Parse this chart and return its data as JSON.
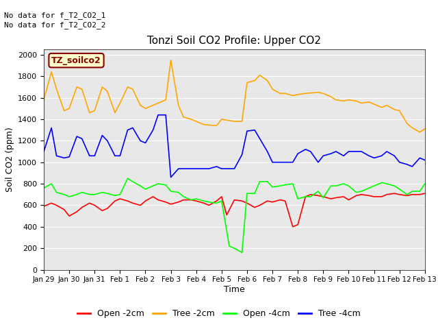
{
  "title": "Tonzi Soil CO2 Profile: Upper CO2",
  "ylabel": "Soil CO2 (ppm)",
  "xlabel": "Time",
  "no_data_text": [
    "No data for f_T2_CO2_1",
    "No data for f_T2_CO2_2"
  ],
  "legend_label": "TZ_soilco2",
  "ylim": [
    0,
    2050
  ],
  "background_color": "#e8e8e8",
  "series": {
    "open_2cm": {
      "label": "Open -2cm",
      "color": "red",
      "x": [
        0,
        0.3,
        0.5,
        0.8,
        1.0,
        1.3,
        1.5,
        1.8,
        2.0,
        2.3,
        2.5,
        2.8,
        3.0,
        3.3,
        3.5,
        3.8,
        4.0,
        4.3,
        4.5,
        4.8,
        5.0,
        5.3,
        5.5,
        5.8,
        6.0,
        6.3,
        6.5,
        6.8,
        7.0,
        7.2,
        7.5,
        7.8,
        8.0,
        8.3,
        8.5,
        8.8,
        9.0,
        9.3,
        9.5,
        9.8,
        10.0,
        10.3,
        10.5,
        10.8,
        11.0,
        11.3,
        11.5,
        11.8,
        12.0,
        12.3,
        12.5,
        12.8,
        13.0,
        13.3,
        13.5,
        13.8,
        14.0,
        14.3,
        14.5,
        14.8,
        15.0
      ],
      "y": [
        590,
        620,
        600,
        560,
        500,
        540,
        580,
        620,
        600,
        550,
        570,
        640,
        660,
        640,
        620,
        600,
        640,
        680,
        650,
        630,
        610,
        630,
        650,
        650,
        640,
        620,
        600,
        640,
        680,
        510,
        650,
        640,
        620,
        580,
        600,
        640,
        630,
        650,
        640,
        400,
        420,
        680,
        700,
        690,
        680,
        660,
        670,
        680,
        650,
        690,
        700,
        690,
        680,
        680,
        700,
        710,
        700,
        690,
        700,
        700,
        710
      ]
    },
    "tree_2cm": {
      "label": "Tree -2cm",
      "color": "orange",
      "x": [
        0,
        0.3,
        0.5,
        0.8,
        1.0,
        1.3,
        1.5,
        1.8,
        2.0,
        2.3,
        2.5,
        2.8,
        3.0,
        3.3,
        3.5,
        3.8,
        4.0,
        4.3,
        4.5,
        4.8,
        5.0,
        5.3,
        5.5,
        5.8,
        6.0,
        6.3,
        6.8,
        7.0,
        7.5,
        7.8,
        8.0,
        8.3,
        8.5,
        8.8,
        9.0,
        9.3,
        9.5,
        9.8,
        10.0,
        10.3,
        10.8,
        11.0,
        11.3,
        11.5,
        11.8,
        12.0,
        12.3,
        12.5,
        12.8,
        13.0,
        13.3,
        13.5,
        13.8,
        14.0,
        14.3,
        14.5,
        14.8,
        15.0
      ],
      "y": [
        1580,
        1840,
        1680,
        1480,
        1500,
        1700,
        1680,
        1460,
        1480,
        1700,
        1660,
        1460,
        1550,
        1700,
        1680,
        1530,
        1500,
        1530,
        1550,
        1580,
        1950,
        1530,
        1420,
        1400,
        1380,
        1350,
        1340,
        1400,
        1380,
        1380,
        1740,
        1760,
        1810,
        1760,
        1680,
        1640,
        1640,
        1620,
        1630,
        1640,
        1650,
        1640,
        1610,
        1580,
        1570,
        1580,
        1570,
        1550,
        1560,
        1540,
        1510,
        1530,
        1490,
        1480,
        1360,
        1320,
        1280,
        1310
      ]
    },
    "open_4cm": {
      "label": "Open -4cm",
      "color": "lime",
      "x": [
        0,
        0.3,
        0.5,
        0.8,
        1.0,
        1.3,
        1.5,
        1.8,
        2.0,
        2.3,
        2.5,
        2.8,
        3.0,
        3.3,
        3.5,
        3.8,
        4.0,
        4.3,
        4.5,
        4.8,
        5.0,
        5.3,
        5.5,
        5.8,
        6.0,
        6.3,
        6.5,
        6.8,
        7.0,
        7.3,
        7.5,
        7.8,
        8.0,
        8.3,
        8.5,
        8.8,
        9.0,
        9.3,
        9.5,
        9.8,
        10.0,
        10.3,
        10.5,
        10.8,
        11.0,
        11.3,
        11.5,
        11.8,
        12.0,
        12.3,
        12.5,
        12.8,
        13.0,
        13.3,
        13.5,
        13.8,
        14.0,
        14.3,
        14.5,
        14.8,
        15.0
      ],
      "y": [
        760,
        800,
        720,
        700,
        680,
        700,
        720,
        700,
        700,
        720,
        710,
        690,
        700,
        850,
        820,
        780,
        750,
        780,
        800,
        790,
        730,
        720,
        680,
        650,
        660,
        640,
        630,
        620,
        640,
        220,
        200,
        160,
        710,
        710,
        820,
        820,
        770,
        780,
        790,
        800,
        660,
        680,
        680,
        730,
        670,
        780,
        780,
        800,
        780,
        720,
        730,
        760,
        780,
        810,
        800,
        780,
        750,
        700,
        730,
        730,
        800
      ]
    },
    "tree_4cm": {
      "label": "Tree -4cm",
      "color": "blue",
      "x": [
        0,
        0.3,
        0.5,
        0.8,
        1.0,
        1.3,
        1.5,
        1.8,
        2.0,
        2.3,
        2.5,
        2.8,
        3.0,
        3.3,
        3.5,
        3.8,
        4.0,
        4.3,
        4.5,
        4.8,
        5.0,
        5.3,
        5.5,
        5.8,
        6.0,
        6.3,
        6.5,
        6.8,
        7.0,
        7.3,
        7.5,
        7.8,
        8.0,
        8.3,
        8.5,
        8.8,
        9.0,
        9.3,
        9.5,
        9.8,
        10.0,
        10.3,
        10.5,
        10.8,
        11.0,
        11.3,
        11.5,
        11.8,
        12.0,
        12.3,
        12.5,
        12.8,
        13.0,
        13.3,
        13.5,
        13.8,
        14.0,
        14.3,
        14.5,
        14.8,
        15.0
      ],
      "y": [
        1100,
        1320,
        1060,
        1040,
        1050,
        1240,
        1220,
        1060,
        1060,
        1250,
        1200,
        1060,
        1060,
        1300,
        1320,
        1200,
        1180,
        1300,
        1440,
        1440,
        860,
        940,
        940,
        940,
        940,
        940,
        940,
        960,
        940,
        940,
        940,
        1070,
        1290,
        1300,
        1220,
        1100,
        1000,
        1000,
        1000,
        1000,
        1080,
        1120,
        1100,
        1000,
        1060,
        1080,
        1100,
        1060,
        1100,
        1100,
        1100,
        1060,
        1040,
        1060,
        1100,
        1060,
        1000,
        980,
        960,
        1040,
        1020
      ]
    }
  },
  "xtick_labels": [
    "Jan 29",
    "Jan 30",
    "Jan 31",
    "Feb 1",
    "Feb 2",
    "Feb 3",
    "Feb 4",
    "Feb 5",
    "Feb 6",
    "Feb 7",
    "Feb 8",
    "Feb 9",
    "Feb 10",
    "Feb 11",
    "Feb 12",
    "Feb 13"
  ],
  "xtick_positions": [
    0,
    1,
    2,
    3,
    4,
    5,
    6,
    7,
    8,
    9,
    10,
    11,
    12,
    13,
    14,
    15
  ],
  "ytick_labels": [
    "0",
    "200",
    "400",
    "600",
    "800",
    "1000",
    "1200",
    "1400",
    "1600",
    "1800",
    "2000"
  ],
  "ytick_positions": [
    0,
    200,
    400,
    600,
    800,
    1000,
    1200,
    1400,
    1600,
    1800,
    2000
  ],
  "series_order": [
    "open_2cm",
    "tree_2cm",
    "open_4cm",
    "tree_4cm"
  ]
}
